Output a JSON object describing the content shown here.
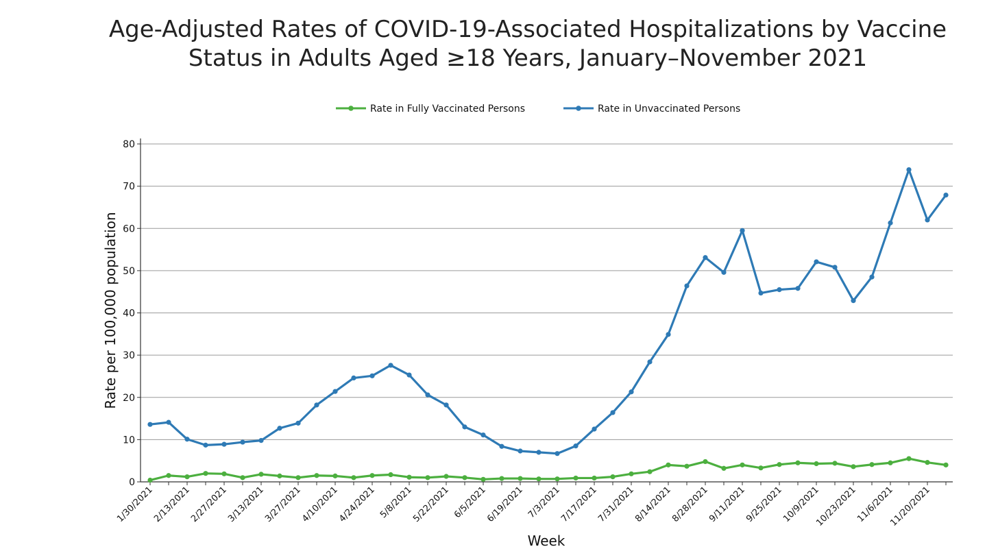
{
  "chart_data": {
    "type": "line",
    "title_line1": "Age-Adjusted Rates of COVID-19-Associated Hospitalizations by Vaccine",
    "title_line2": "Status in Adults Aged ≥18 Years, January–November 2021",
    "xlabel": "Week",
    "ylabel": "Rate per 100,000 population",
    "ylim": [
      0,
      80
    ],
    "yticks": [
      0,
      10,
      20,
      30,
      40,
      50,
      60,
      70,
      80
    ],
    "grid": true,
    "legend_position": "top-center",
    "x": [
      "1/30/2021",
      "2/6/2021",
      "2/13/2021",
      "2/20/2021",
      "2/27/2021",
      "3/6/2021",
      "3/13/2021",
      "3/20/2021",
      "3/27/2021",
      "4/3/2021",
      "4/10/2021",
      "4/17/2021",
      "4/24/2021",
      "5/1/2021",
      "5/8/2021",
      "5/15/2021",
      "5/22/2021",
      "5/29/2021",
      "6/5/2021",
      "6/12/2021",
      "6/19/2021",
      "6/26/2021",
      "7/3/2021",
      "7/10/2021",
      "7/17/2021",
      "7/24/2021",
      "7/31/2021",
      "8/7/2021",
      "8/14/2021",
      "8/21/2021",
      "8/28/2021",
      "9/4/2021",
      "9/11/2021",
      "9/18/2021",
      "9/25/2021",
      "10/2/2021",
      "10/9/2021",
      "10/16/2021",
      "10/23/2021",
      "10/30/2021",
      "11/6/2021",
      "11/13/2021",
      "11/20/2021",
      "11/27/2021"
    ],
    "x_tick_labels": [
      "1/30/2021",
      "2/13/2021",
      "2/27/2021",
      "3/13/2021",
      "3/27/2021",
      "4/10/2021",
      "4/24/2021",
      "5/8/2021",
      "5/22/2021",
      "6/5/2021",
      "6/19/2021",
      "7/3/2021",
      "7/17/2021",
      "7/31/2021",
      "8/14/2021",
      "8/28/2021",
      "9/11/2021",
      "9/25/2021",
      "10/9/2021",
      "10/23/2021",
      "11/6/2021",
      "11/20/2021"
    ],
    "series": [
      {
        "name": "Rate in Fully Vaccinated Persons",
        "color": "#4caf3f",
        "values": [
          0.4,
          1.5,
          1.2,
          2.0,
          1.9,
          1.0,
          1.8,
          1.4,
          1.0,
          1.5,
          1.4,
          1.0,
          1.5,
          1.7,
          1.1,
          1.0,
          1.3,
          1.0,
          0.6,
          0.8,
          0.8,
          0.7,
          0.7,
          0.9,
          0.9,
          1.2,
          1.9,
          2.4,
          4.0,
          3.7,
          4.8,
          3.2,
          4.0,
          3.3,
          4.1,
          4.5,
          4.3,
          4.4,
          3.6,
          4.1,
          4.5,
          5.5,
          4.6,
          4.0
        ]
      },
      {
        "name": "Rate in Unvaccinated Persons",
        "color": "#2e7ab5",
        "values": [
          13.6,
          14.1,
          10.1,
          8.7,
          8.9,
          9.4,
          9.8,
          12.7,
          13.9,
          18.2,
          21.4,
          24.6,
          25.1,
          27.6,
          25.3,
          20.6,
          18.2,
          13.0,
          11.1,
          8.4,
          7.3,
          7.0,
          6.7,
          8.5,
          12.5,
          16.4,
          21.3,
          28.4,
          34.9,
          46.4,
          53.1,
          49.6,
          59.5,
          44.7,
          45.5,
          45.8,
          52.1,
          50.8,
          42.9,
          48.5,
          61.3,
          73.9,
          62.0,
          67.9
        ]
      }
    ]
  }
}
